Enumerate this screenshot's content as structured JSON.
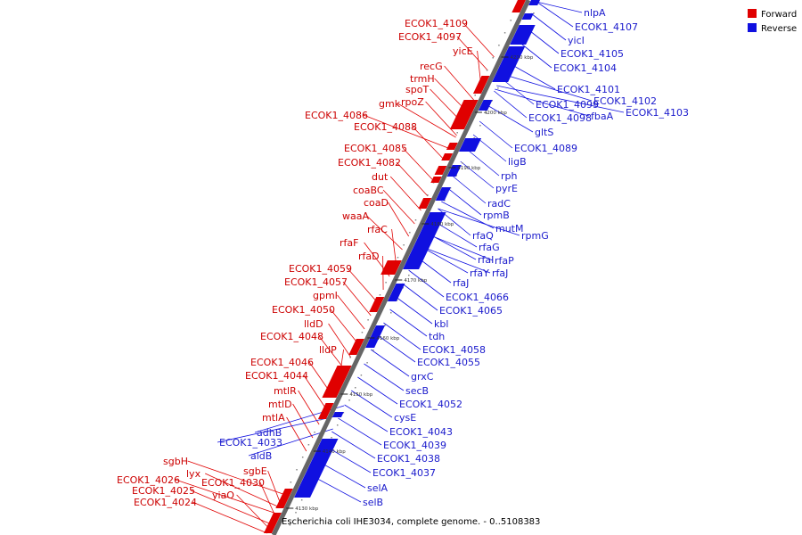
{
  "caption": "Escherichia coli IHE3034, complete genome. - 0..5108383",
  "legend": [
    {
      "label": "Forward",
      "color": "#e00000"
    },
    {
      "label": "Reverse",
      "color": "#1010e0"
    }
  ],
  "colors": {
    "forward": "#e00000",
    "reverse": "#1010e0",
    "forward_label": "#cc0000",
    "reverse_label": "#1a1acc",
    "axis": "#666666"
  },
  "kbp_marks": [
    "4130 kbp",
    "4140 kbp",
    "4150 kbp",
    "4160 kbp",
    "4170 kbp",
    "4180 kbp",
    "4190 kbp",
    "4200 kbp",
    "4210 kbp"
  ],
  "forward_genes": [
    {
      "label": "ECOK1_4109"
    },
    {
      "label": "ECOK1_4097"
    },
    {
      "label": "yicE"
    },
    {
      "label": "recG"
    },
    {
      "label": "trmH"
    },
    {
      "label": "spoT"
    },
    {
      "label": "rpoZ"
    },
    {
      "label": "gmk"
    },
    {
      "label": "ECOK1_4086"
    },
    {
      "label": "ECOK1_4088"
    },
    {
      "label": "ECOK1_4085"
    },
    {
      "label": "ECOK1_4082"
    },
    {
      "label": "dut"
    },
    {
      "label": "coaBC"
    },
    {
      "label": "coaD"
    },
    {
      "label": "waaA"
    },
    {
      "label": "rfaC"
    },
    {
      "label": "rfaF"
    },
    {
      "label": "rfaD"
    },
    {
      "label": "ECOK1_4059"
    },
    {
      "label": "ECOK1_4057"
    },
    {
      "label": "gpmI"
    },
    {
      "label": "ECOK1_4050"
    },
    {
      "label": "lldD"
    },
    {
      "label": "ECOK1_4048"
    },
    {
      "label": "lldP"
    },
    {
      "label": "ECOK1_4046"
    },
    {
      "label": "ECOK1_4044"
    },
    {
      "label": "mtlR"
    },
    {
      "label": "mtlD"
    },
    {
      "label": "mtlA"
    },
    {
      "label": "sgbH"
    },
    {
      "label": "lyx"
    },
    {
      "label": "sgbE"
    },
    {
      "label": "ECOK1_4030"
    },
    {
      "label": "ECOK1_4026"
    },
    {
      "label": "ECOK1_4025"
    },
    {
      "label": "yiaO"
    },
    {
      "label": "ECOK1_4024"
    }
  ],
  "reverse_genes": [
    {
      "label": "nlpA"
    },
    {
      "label": "ECOK1_4107"
    },
    {
      "label": "yicI"
    },
    {
      "label": "ECOK1_4105"
    },
    {
      "label": "ECOK1_4104"
    },
    {
      "label": "ECOK1_4101"
    },
    {
      "label": "ECOK1_4102"
    },
    {
      "label": "ECOK1_4103"
    },
    {
      "label": "ECOK1_4099"
    },
    {
      "label": "fbaA"
    },
    {
      "label": "ECOK1_4098"
    },
    {
      "label": "gltS"
    },
    {
      "label": "ECOK1_4089"
    },
    {
      "label": "ligB"
    },
    {
      "label": "rph"
    },
    {
      "label": "pyrE"
    },
    {
      "label": "radC"
    },
    {
      "label": "rpmB"
    },
    {
      "label": "mutM"
    },
    {
      "label": "rpmG"
    },
    {
      "label": "rfaQ"
    },
    {
      "label": "rfaG"
    },
    {
      "label": "rfaP"
    },
    {
      "label": "rfaI"
    },
    {
      "label": "rfaY"
    },
    {
      "label": "rfaJ"
    },
    {
      "label": "rfaJ"
    },
    {
      "label": "ECOK1_4066"
    },
    {
      "label": "ECOK1_4065"
    },
    {
      "label": "kbl"
    },
    {
      "label": "tdh"
    },
    {
      "label": "ECOK1_4058"
    },
    {
      "label": "ECOK1_4055"
    },
    {
      "label": "grxC"
    },
    {
      "label": "secB"
    },
    {
      "label": "ECOK1_4052"
    },
    {
      "label": "cysE"
    },
    {
      "label": "ECOK1_4043"
    },
    {
      "label": "adhB"
    },
    {
      "label": "ECOK1_4033"
    },
    {
      "label": "aldB"
    },
    {
      "label": "ECOK1_4039"
    },
    {
      "label": "ECOK1_4038"
    },
    {
      "label": "ECOK1_4037"
    },
    {
      "label": "selA"
    },
    {
      "label": "selB"
    }
  ]
}
